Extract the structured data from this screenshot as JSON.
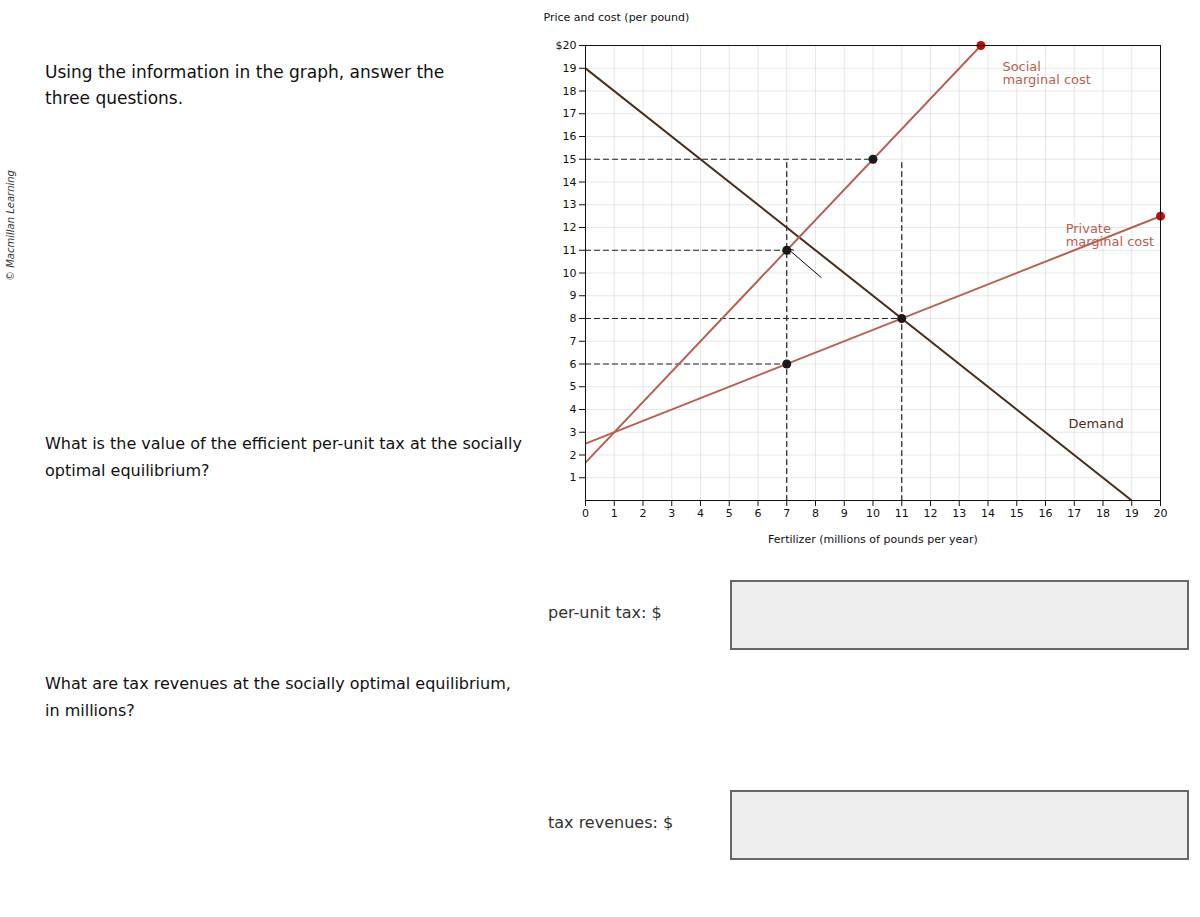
{
  "chart_data": {
    "type": "line",
    "title": "Using the information in the graph, answer the\nthree questions.",
    "texts": {
      "copyright": "© Macmillan Learning",
      "questions": [
        "What is the value of the efficient per-unit tax at the socially\noptimal equilibrium?",
        "What are tax revenues at the socially optimal equilibrium,\nin millions?"
      ],
      "answer_labels": [
        "per-unit tax: $",
        "tax revenues: $"
      ]
    },
    "xlabel": "Fertilizer (millions of pounds per year)",
    "ylabel": "Price and cost (per pound)",
    "xlim": [
      0,
      20
    ],
    "ylim": [
      0,
      20
    ],
    "xticks": [
      0,
      1,
      2,
      3,
      4,
      5,
      6,
      7,
      8,
      9,
      10,
      11,
      12,
      13,
      14,
      15,
      16,
      17,
      18,
      19,
      20
    ],
    "yticks": [
      {
        "value": 20,
        "label": "$20"
      },
      19,
      18,
      17,
      16,
      15,
      14,
      13,
      12,
      11,
      10,
      9,
      8,
      7,
      6,
      5,
      4,
      3,
      2,
      1
    ],
    "grid": true,
    "series": [
      {
        "name": "Demand",
        "color": "#4a2c1a",
        "x": [
          0,
          19
        ],
        "values": [
          19,
          0
        ],
        "label_x": 16.8,
        "label_y": 3.2
      },
      {
        "name": "Private\nmarginal cost",
        "color": "#b86050",
        "x": [
          0,
          20
        ],
        "values": [
          2.5,
          12.5
        ],
        "label_x": 16.7,
        "label_y": 11.2
      },
      {
        "name": "Social\nmarginal cost",
        "color": "#b86050",
        "x": [
          0,
          13.753188297074269
        ],
        "values": [
          1.667,
          20
        ],
        "label_x": 14.5,
        "label_y": 18.3
      }
    ],
    "reference_lines": [
      {
        "x": [
          0,
          10
        ],
        "values": [
          15,
          15
        ],
        "color": "#222222",
        "line_style": "dashed"
      },
      {
        "x": [
          0,
          7
        ],
        "values": [
          11,
          11
        ],
        "color": "#222222",
        "line_style": "dashed"
      },
      {
        "x": [
          0,
          11
        ],
        "values": [
          8,
          8
        ],
        "color": "#222222",
        "line_style": "dashed"
      },
      {
        "x": [
          0,
          7
        ],
        "values": [
          6,
          6
        ],
        "color": "#222222",
        "line_style": "dashed"
      },
      {
        "x": [
          7,
          7
        ],
        "values": [
          0,
          15
        ],
        "color": "#222222",
        "line_style": "dashed"
      },
      {
        "x": [
          11,
          11
        ],
        "values": [
          0,
          15
        ],
        "color": "#222222",
        "line_style": "dashed"
      }
    ],
    "points": [
      {
        "x": 7,
        "y": 11,
        "color": "#1a1a1a"
      },
      {
        "x": 7,
        "y": 6,
        "color": "#1a1a1a"
      },
      {
        "x": 11,
        "y": 8,
        "color": "#1a1a1a"
      },
      {
        "x": 10,
        "y": 15,
        "color": "#1a1a1a"
      },
      {
        "x": 13.753188297074269,
        "y": 20,
        "color": "#bb1100"
      },
      {
        "x": 20,
        "y": 12.5,
        "color": "#bb1100"
      }
    ],
    "arrows": [
      {
        "x1": 8.2,
        "y1": 9.8,
        "x2": 7.05,
        "y2": 11.05
      }
    ]
  }
}
